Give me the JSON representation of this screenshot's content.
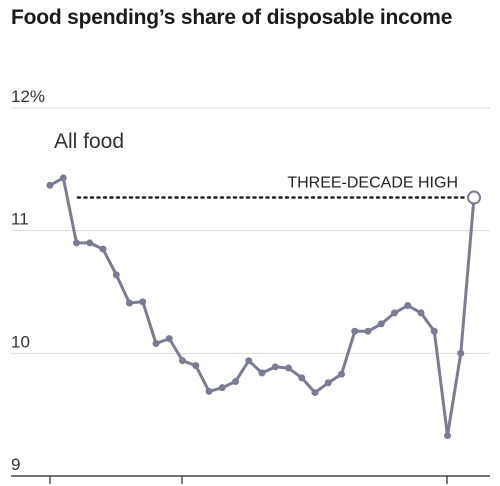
{
  "title": "Food spending’s share of disposable income",
  "chart_data": {
    "type": "line",
    "title": "Food spending’s share of disposable income",
    "series": [
      {
        "name": "All food",
        "values": [
          11.37,
          11.43,
          10.9,
          10.9,
          10.85,
          10.64,
          10.41,
          10.42,
          10.08,
          10.12,
          9.94,
          9.9,
          9.69,
          9.72,
          9.77,
          9.94,
          9.84,
          9.89,
          9.88,
          9.8,
          9.68,
          9.76,
          9.83,
          10.18,
          10.18,
          10.24,
          10.33,
          10.39,
          10.33,
          10.18,
          9.33,
          10.0,
          11.27
        ]
      }
    ],
    "ylim": [
      9,
      12
    ],
    "yticks": [
      {
        "value": 12,
        "label": "12%"
      },
      {
        "value": 11,
        "label": "11"
      },
      {
        "value": 10,
        "label": "10"
      },
      {
        "value": 9,
        "label": "9"
      }
    ],
    "x_tick_count": 3,
    "annotation": {
      "label": "THREE-DECADE HIGH",
      "value": 11.27
    },
    "grid": true,
    "color": "#7a7c94",
    "grid_color": "#d9d9d9",
    "annotation_color": "#222222"
  }
}
